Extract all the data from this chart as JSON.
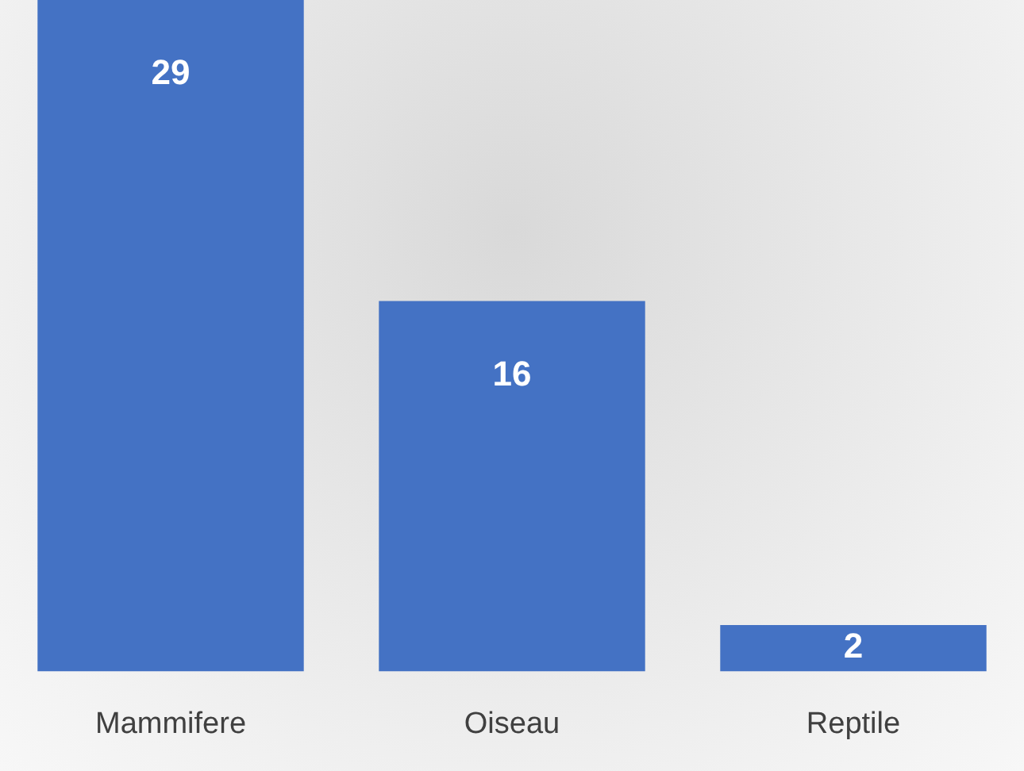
{
  "chart_data": {
    "type": "bar",
    "categories": [
      "Mammifere",
      "Oiseau",
      "Reptile"
    ],
    "values": [
      29,
      16,
      2
    ],
    "color": "#4472c4",
    "data_labels": true,
    "relative": false,
    "grid": false,
    "legend": false
  }
}
